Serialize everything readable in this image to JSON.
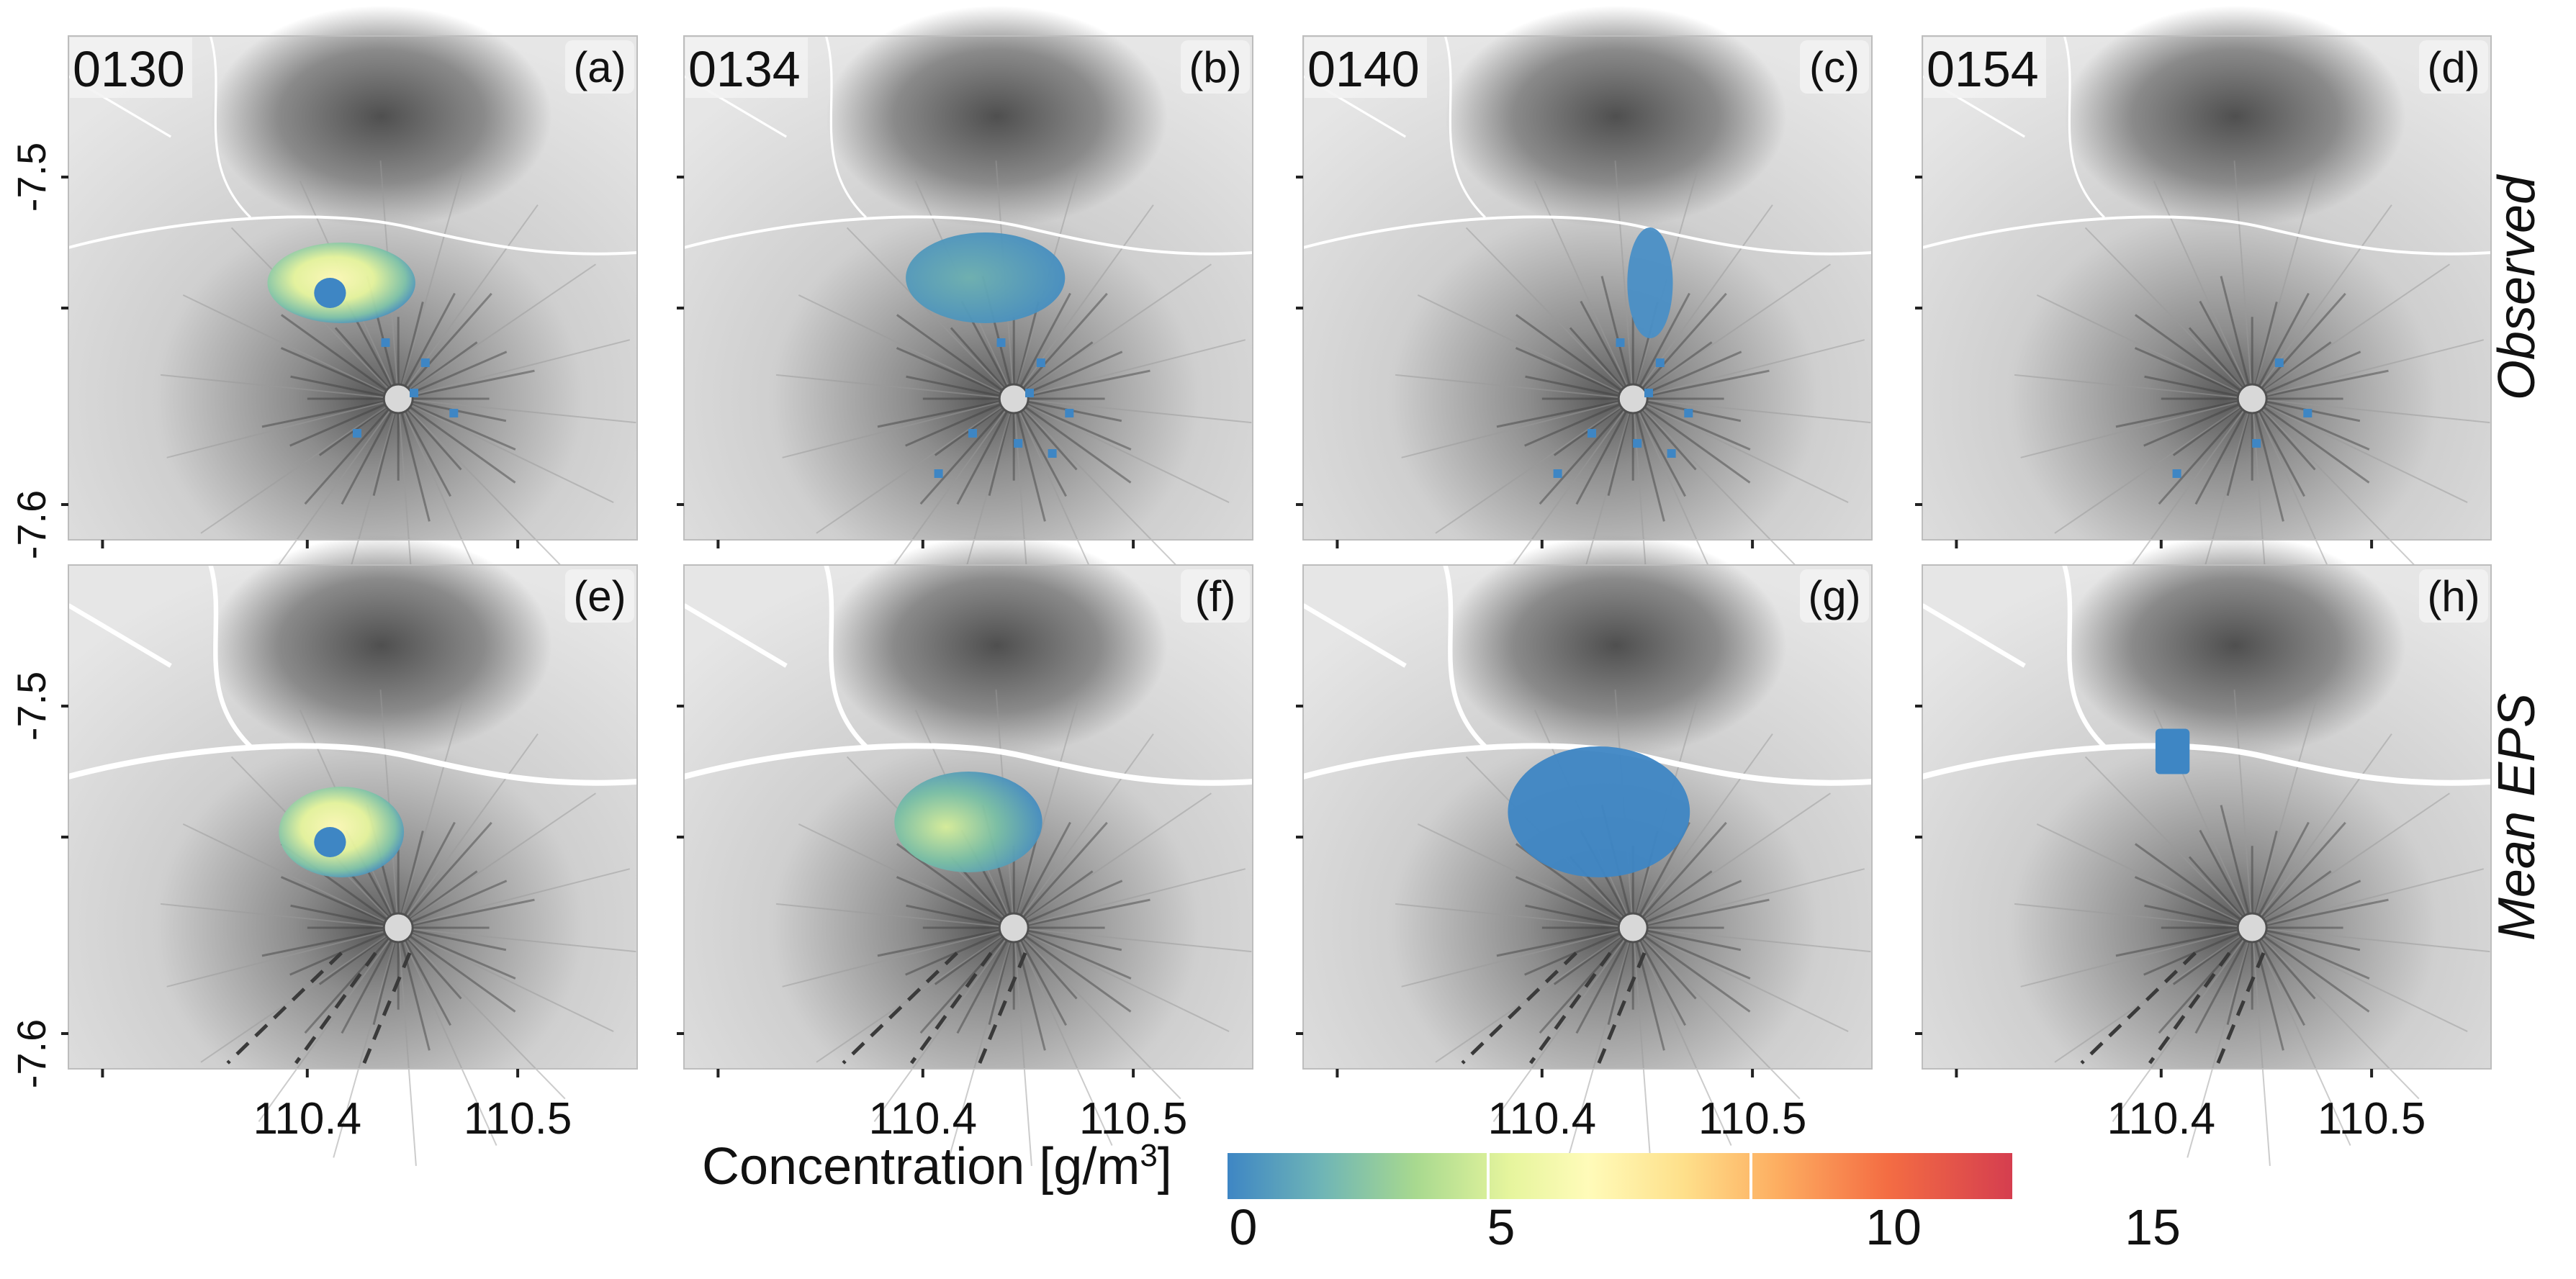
{
  "figure": {
    "row_labels": [
      "Observed",
      "Mean EPS"
    ],
    "y_ticks": [
      "-7.5",
      "-7.6"
    ],
    "x_ticks": [
      "110.4",
      "110.5"
    ],
    "panels": [
      {
        "time": "0130",
        "letter": "(a)",
        "row": 0
      },
      {
        "time": "0134",
        "letter": "(b)",
        "row": 0
      },
      {
        "time": "0140",
        "letter": "(c)",
        "row": 0
      },
      {
        "time": "0154",
        "letter": "(d)",
        "row": 0
      },
      {
        "time": "",
        "letter": "(e)",
        "row": 1
      },
      {
        "time": "",
        "letter": "(f)",
        "row": 1
      },
      {
        "time": "",
        "letter": "(g)",
        "row": 1
      },
      {
        "time": "",
        "letter": "(h)",
        "row": 1
      }
    ]
  },
  "legend": {
    "title": "Concentration [g/m",
    "title_sup": "3",
    "title_end": "]",
    "ticks": [
      "0",
      "5",
      "10",
      "15"
    ],
    "colors": [
      "#3e86c4",
      "#a8d98f",
      "#fffbb9",
      "#fdae61",
      "#d53e4f"
    ]
  }
}
